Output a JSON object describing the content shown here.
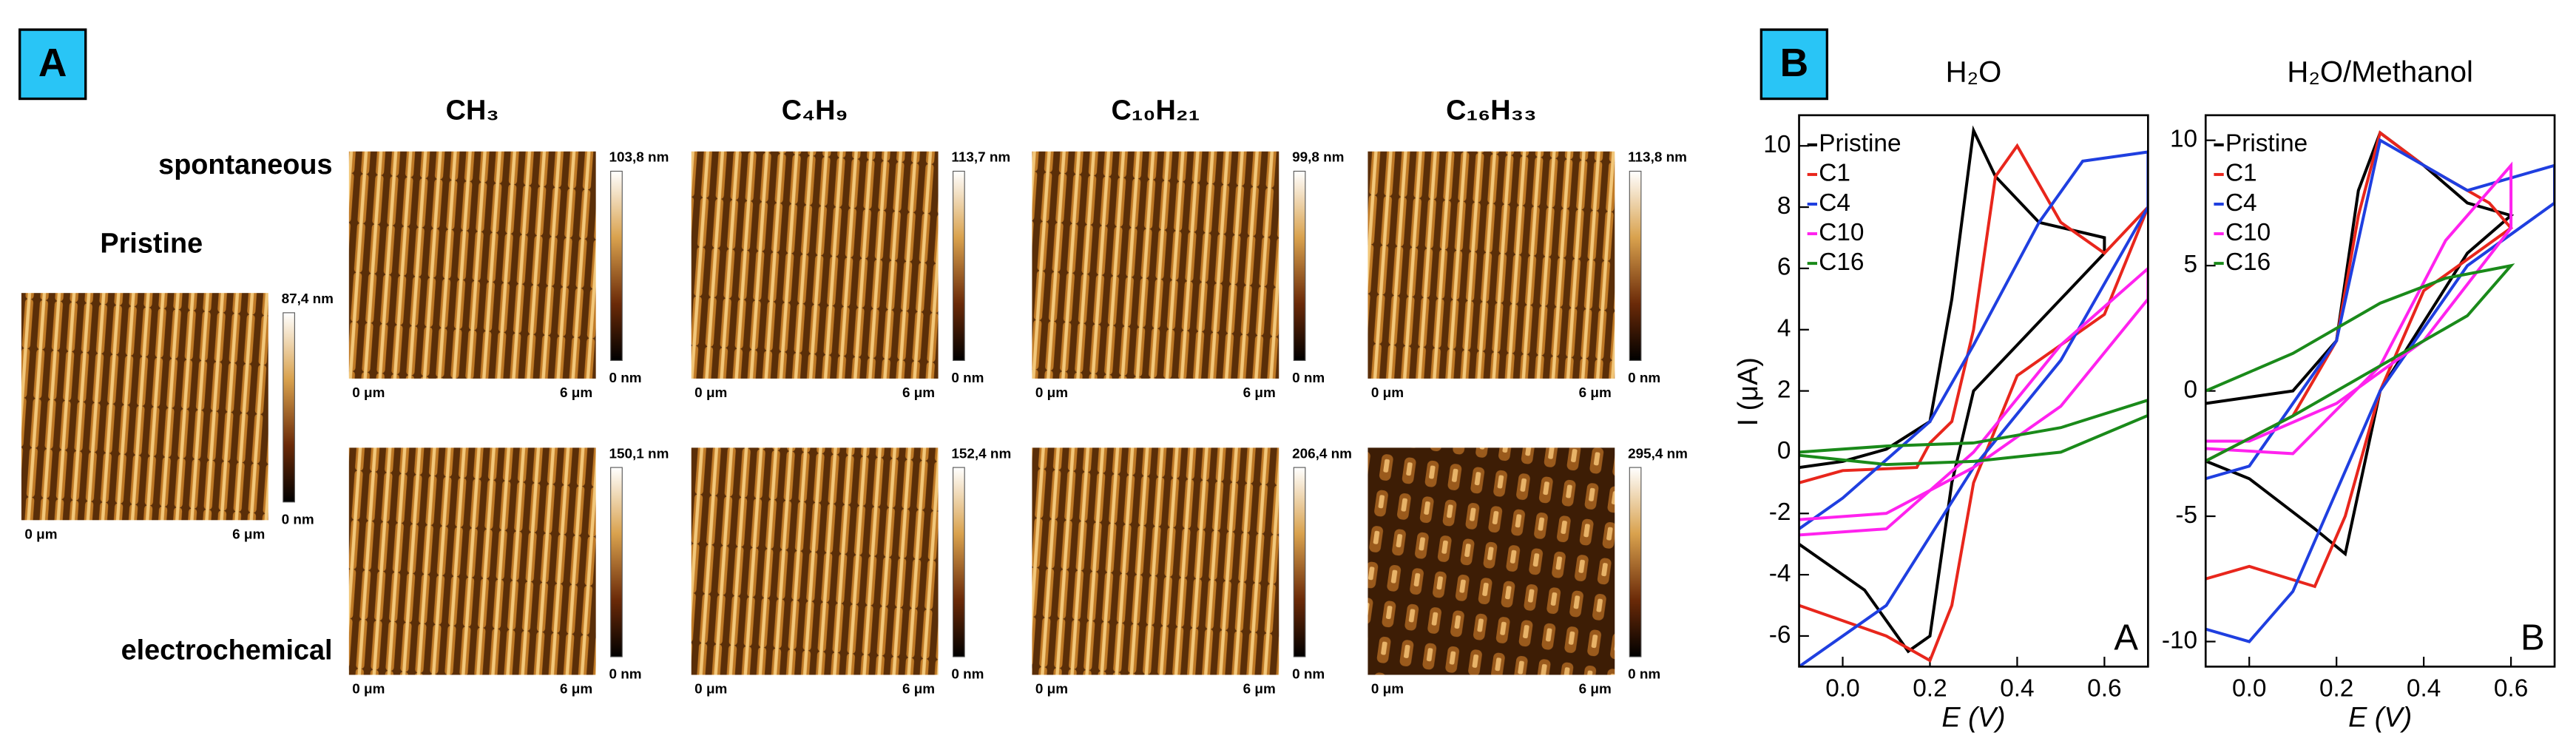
{
  "panel_a": {
    "label": "A",
    "columns": [
      "CH₃",
      "C₄H₉",
      "C₁₀H₂₁",
      "C₁₆H₃₃"
    ],
    "rows": [
      "spontaneous",
      "electrochemical"
    ],
    "pristine_label": "Pristine",
    "images": [
      {
        "scale_max": "87,4 nm",
        "scale_min": "0 nm",
        "x_start": "0 μm",
        "x_end": "6 μm"
      },
      {
        "scale_max": "103,8 nm",
        "scale_min": "0 nm",
        "x_start": "0 μm",
        "x_end": "6 μm"
      },
      {
        "scale_max": "113,7 nm",
        "scale_min": "0 nm",
        "x_start": "0 μm",
        "x_end": "6 μm"
      },
      {
        "scale_max": "99,8 nm",
        "scale_min": "0 nm",
        "x_start": "0 μm",
        "x_end": "6 μm"
      },
      {
        "scale_max": "113,8 nm",
        "scale_min": "0 nm",
        "x_start": "0 μm",
        "x_end": "6 μm"
      },
      {
        "scale_max": "150,1 nm",
        "scale_min": "0 nm",
        "x_start": "0 μm",
        "x_end": "6 μm"
      },
      {
        "scale_max": "152,4 nm",
        "scale_min": "0 nm",
        "x_start": "0 μm",
        "x_end": "6 μm"
      },
      {
        "scale_max": "206,4 nm",
        "scale_min": "0 nm",
        "x_start": "0 μm",
        "x_end": "6 μm"
      },
      {
        "scale_max": "295,4 nm",
        "scale_min": "0 nm",
        "x_start": "0 μm",
        "x_end": "6 μm"
      }
    ]
  },
  "panel_b_label": "B",
  "chart_data": [
    {
      "type": "line",
      "title": "H₂O",
      "panel_letter": "A",
      "xlabel": "E (V)",
      "ylabel": "I (μA)",
      "xlim": [
        -0.1,
        0.7
      ],
      "xticks": [
        {
          "value": 0,
          "label": "0.0"
        },
        0.2,
        0.4,
        0.6
      ],
      "ylim": [
        -7,
        11
      ],
      "yticks": [
        -6,
        -4,
        -2,
        0,
        2,
        4,
        6,
        8,
        10
      ],
      "legend": "upper left",
      "series": [
        {
          "name": "Pristine",
          "color": "#000000",
          "x": [
            -0.1,
            0.0,
            0.1,
            0.2,
            0.25,
            0.3,
            0.35,
            0.45,
            0.6,
            0.6,
            0.5,
            0.4,
            0.3,
            0.25,
            0.2,
            0.15,
            0.05,
            -0.1
          ],
          "values": [
            -0.5,
            -0.3,
            0.1,
            1,
            5,
            10.5,
            9,
            7.5,
            7,
            6.5,
            5,
            3.5,
            2,
            -1,
            -6,
            -6.5,
            -4.5,
            -3
          ]
        },
        {
          "name": "C1",
          "color": "#e8261c",
          "x": [
            -0.1,
            0.0,
            0.1,
            0.2,
            0.25,
            0.3,
            0.4,
            0.5,
            0.6,
            0.7,
            0.6,
            0.5,
            0.4,
            0.35,
            0.3,
            0.25,
            0.2,
            0.17,
            0.0,
            -0.1
          ],
          "values": [
            -5,
            -5.5,
            -6,
            -6.8,
            -5,
            -1,
            2.5,
            3.5,
            4.5,
            8,
            6.5,
            7.5,
            10,
            9,
            4,
            1,
            0.3,
            -0.5,
            -0.6,
            -1
          ]
        },
        {
          "name": "C4",
          "color": "#1f3fe0",
          "x": [
            -0.1,
            0.1,
            0.3,
            0.5,
            0.7,
            0.7,
            0.55,
            0.45,
            0.3,
            0.2,
            0.0,
            -0.1
          ],
          "values": [
            -7,
            -5,
            -0.5,
            3,
            8,
            9.8,
            9.5,
            7.5,
            3.5,
            1,
            -1.5,
            -2.5
          ]
        },
        {
          "name": "C10",
          "color": "#ff22ee",
          "x": [
            -0.1,
            0.1,
            0.3,
            0.5,
            0.7,
            0.7,
            0.5,
            0.3,
            0.1,
            -0.1
          ],
          "values": [
            -2.7,
            -2.5,
            0,
            3.5,
            6,
            5,
            1.5,
            -0.5,
            -2,
            -2.2
          ]
        },
        {
          "name": "C16",
          "color": "#1a8a1a",
          "x": [
            -0.1,
            0.1,
            0.3,
            0.5,
            0.7,
            0.7,
            0.5,
            0.3,
            0.1,
            -0.1
          ],
          "values": [
            0,
            0.2,
            0.3,
            0.8,
            1.7,
            1.2,
            0,
            -0.3,
            -0.4,
            -0.1
          ]
        }
      ]
    },
    {
      "type": "line",
      "title": "H₂O/Methanol",
      "panel_letter": "B",
      "xlabel": "E (V)",
      "xlim": [
        -0.1,
        0.7
      ],
      "xticks": [
        {
          "value": 0,
          "label": "0.0"
        },
        0.2,
        0.4,
        0.6
      ],
      "ylim": [
        -11,
        11
      ],
      "yticks": [
        -10,
        -5,
        0,
        5,
        10
      ],
      "legend": "upper left",
      "series": [
        {
          "name": "Pristine",
          "color": "#000000",
          "x": [
            -0.1,
            0.1,
            0.2,
            0.25,
            0.3,
            0.4,
            0.5,
            0.6,
            0.5,
            0.3,
            0.22,
            0.15,
            0.0,
            -0.1
          ],
          "values": [
            -0.5,
            0,
            2,
            8,
            10.3,
            9,
            7.5,
            7,
            5.5,
            0,
            -6.5,
            -5.5,
            -3.5,
            -2.8
          ]
        },
        {
          "name": "C1",
          "color": "#e8261c",
          "x": [
            -0.1,
            0.0,
            0.15,
            0.22,
            0.3,
            0.4,
            0.6,
            0.55,
            0.4,
            0.3,
            0.25,
            0.2,
            0.1,
            -0.1
          ],
          "values": [
            -7.5,
            -7,
            -7.8,
            -5,
            0,
            4,
            6.5,
            7.5,
            9,
            10.3,
            7,
            2,
            -1,
            -2.8
          ]
        },
        {
          "name": "C4",
          "color": "#1f3fe0",
          "x": [
            -0.1,
            0.0,
            0.1,
            0.2,
            0.3,
            0.5,
            0.7,
            0.7,
            0.5,
            0.3,
            0.2,
            0.0,
            -0.1
          ],
          "values": [
            -9.5,
            -10,
            -8,
            -4,
            0,
            5,
            7.5,
            9,
            8,
            10,
            2,
            -3,
            -3.5
          ]
        },
        {
          "name": "C10",
          "color": "#ff22ee",
          "x": [
            -0.1,
            0.1,
            0.3,
            0.45,
            0.6,
            0.6,
            0.4,
            0.2,
            0.0,
            -0.1
          ],
          "values": [
            -2.3,
            -2.5,
            1,
            6,
            9,
            6.5,
            2,
            -0.5,
            -2,
            -2
          ]
        },
        {
          "name": "C16",
          "color": "#1a8a1a",
          "x": [
            -0.1,
            0.1,
            0.3,
            0.45,
            0.6,
            0.5,
            0.3,
            0.1,
            -0.1
          ],
          "values": [
            0,
            1.5,
            3.5,
            4.5,
            5,
            3,
            1,
            -1,
            -2.8
          ]
        }
      ]
    }
  ]
}
